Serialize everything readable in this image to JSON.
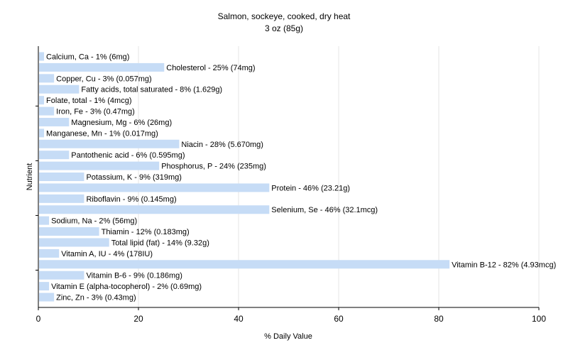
{
  "chart_data": {
    "type": "bar",
    "orientation": "horizontal",
    "title": "Salmon, sockeye, cooked, dry heat",
    "subtitle": "3 oz (85g)",
    "xlabel": "% Daily Value",
    "ylabel": "Nutrient",
    "xlim": [
      0,
      100
    ],
    "xticks": [
      "0",
      "20",
      "40",
      "60",
      "80",
      "100"
    ],
    "grid": true,
    "bar_color": "#c6dcf6",
    "categories": [
      "Calcium, Ca",
      "Cholesterol",
      "Copper, Cu",
      "Fatty acids, total saturated",
      "Folate, total",
      "Iron, Fe",
      "Magnesium, Mg",
      "Manganese, Mn",
      "Niacin",
      "Pantothenic acid",
      "Phosphorus, P",
      "Potassium, K",
      "Protein",
      "Riboflavin",
      "Selenium, Se",
      "Sodium, Na",
      "Thiamin",
      "Total lipid (fat)",
      "Vitamin A, IU",
      "Vitamin B-12",
      "Vitamin B-6",
      "Vitamin E (alpha-tocopherol)",
      "Zinc, Zn"
    ],
    "values": [
      1,
      25,
      3,
      8,
      1,
      3,
      6,
      1,
      28,
      6,
      24,
      9,
      46,
      9,
      46,
      2,
      12,
      14,
      4,
      82,
      9,
      2,
      3
    ],
    "labels": [
      "Calcium, Ca - 1% (6mg)",
      "Cholesterol - 25% (74mg)",
      "Copper, Cu - 3% (0.057mg)",
      "Fatty acids, total saturated - 8% (1.629g)",
      "Folate, total - 1% (4mcg)",
      "Iron, Fe - 3% (0.47mg)",
      "Magnesium, Mg - 6% (26mg)",
      "Manganese, Mn - 1% (0.017mg)",
      "Niacin - 28% (5.670mg)",
      "Pantothenic acid - 6% (0.595mg)",
      "Phosphorus, P - 24% (235mg)",
      "Potassium, K - 9% (319mg)",
      "Protein - 46% (23.21g)",
      "Riboflavin - 9% (0.145mg)",
      "Selenium, Se - 46% (32.1mcg)",
      "Sodium, Na - 2% (56mg)",
      "Thiamin - 12% (0.183mg)",
      "Total lipid (fat) - 14% (9.32g)",
      "Vitamin A, IU - 4% (178IU)",
      "Vitamin B-12 - 82% (4.93mcg)",
      "Vitamin B-6 - 9% (0.186mg)",
      "Vitamin E (alpha-tocopherol) - 2% (0.69mg)",
      "Zinc, Zn - 3% (0.43mg)"
    ]
  }
}
